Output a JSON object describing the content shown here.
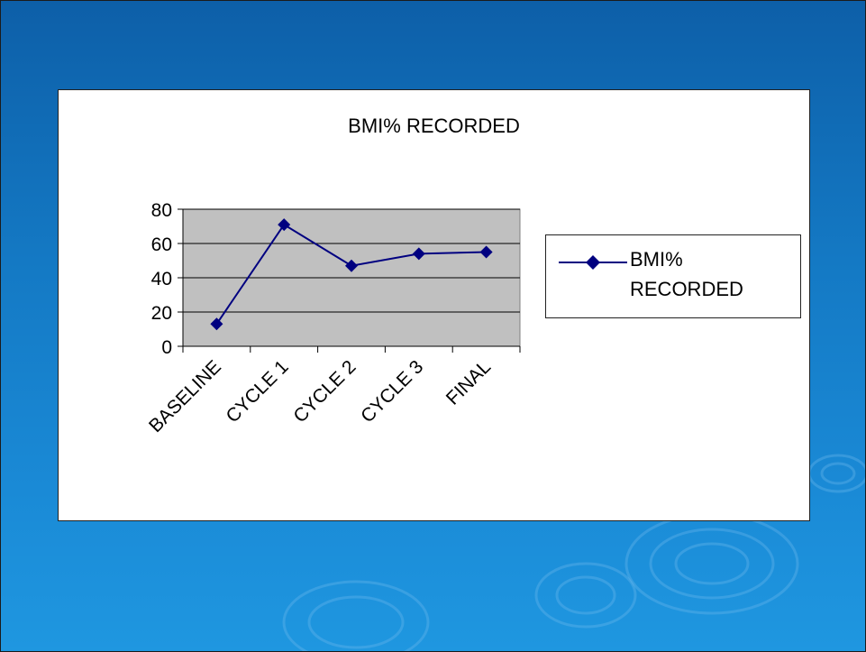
{
  "slide": {
    "background_color": "#1479c4"
  },
  "chart_data": {
    "type": "line",
    "title": "BMI% RECORDED",
    "xlabel": "",
    "ylabel": "",
    "categories": [
      "BASELINE",
      "CYCLE 1",
      "CYCLE 2",
      "CYCLE 3",
      "FINAL"
    ],
    "series": [
      {
        "name": "BMI% RECORDED",
        "values": [
          13,
          71,
          47,
          54,
          55
        ],
        "color": "#000080",
        "marker": "diamond"
      }
    ],
    "ylim": [
      0,
      80
    ],
    "yticks": [
      "0",
      "20",
      "40",
      "60",
      "80"
    ],
    "grid": true,
    "plot_background": "#c0c0c0",
    "legend_position": "right"
  }
}
